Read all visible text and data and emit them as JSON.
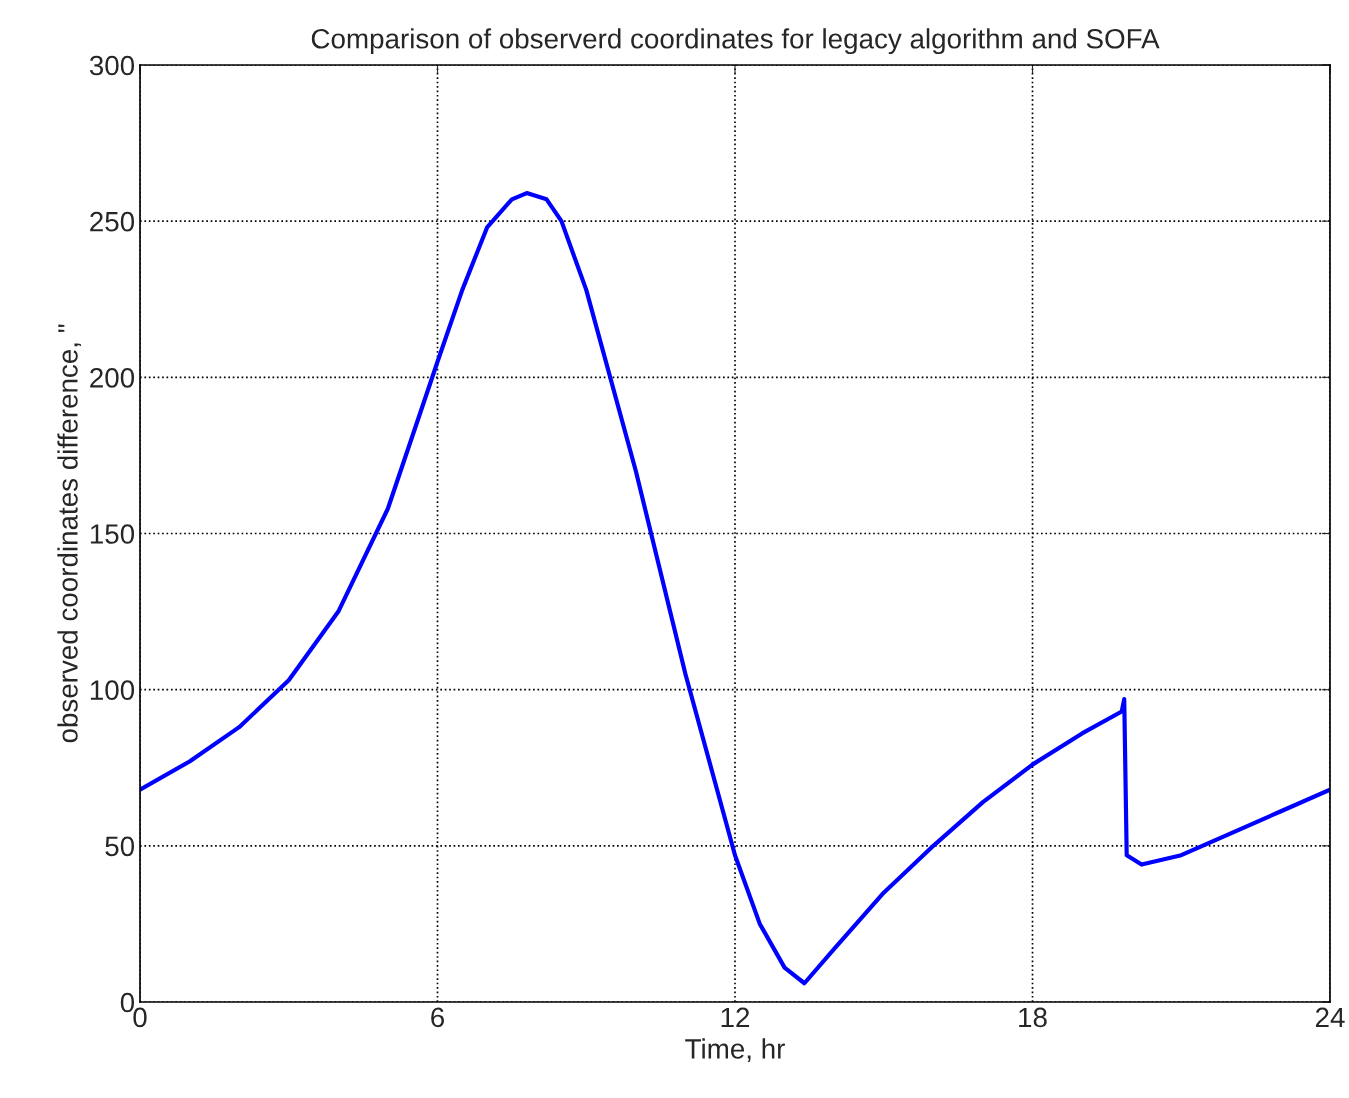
{
  "chart_data": {
    "type": "line",
    "title": "Comparison of observerd coordinates for legacy algorithm and SOFA",
    "xlabel": "Time, hr",
    "ylabel": "observed coordinates difference, \"",
    "series": [
      {
        "color": "#0000ff",
        "x": [
          0,
          1,
          2,
          3,
          4,
          5,
          6,
          6.5,
          7,
          7.5,
          7.8,
          8.2,
          8.5,
          9,
          10,
          11,
          12,
          12.5,
          13,
          13.4,
          14,
          15,
          16,
          17,
          18,
          19,
          19.8,
          19.85,
          19.9,
          20.2,
          21,
          22,
          23,
          24
        ],
        "values": [
          68,
          77,
          88,
          103,
          125,
          158,
          205,
          228,
          248,
          257,
          259,
          257,
          250,
          228,
          170,
          105,
          47,
          25,
          11,
          6,
          17,
          35,
          50,
          64,
          76,
          86,
          93,
          97,
          47,
          44,
          47,
          54,
          61,
          68
        ]
      }
    ],
    "xlim": [
      0,
      24
    ],
    "xticks": [
      0,
      6,
      12,
      18,
      24
    ],
    "ylim": [
      0,
      300
    ],
    "yticks": [
      0,
      50,
      100,
      150,
      200,
      250,
      300
    ],
    "grid": true,
    "line_style": "solid",
    "marker": "none"
  }
}
